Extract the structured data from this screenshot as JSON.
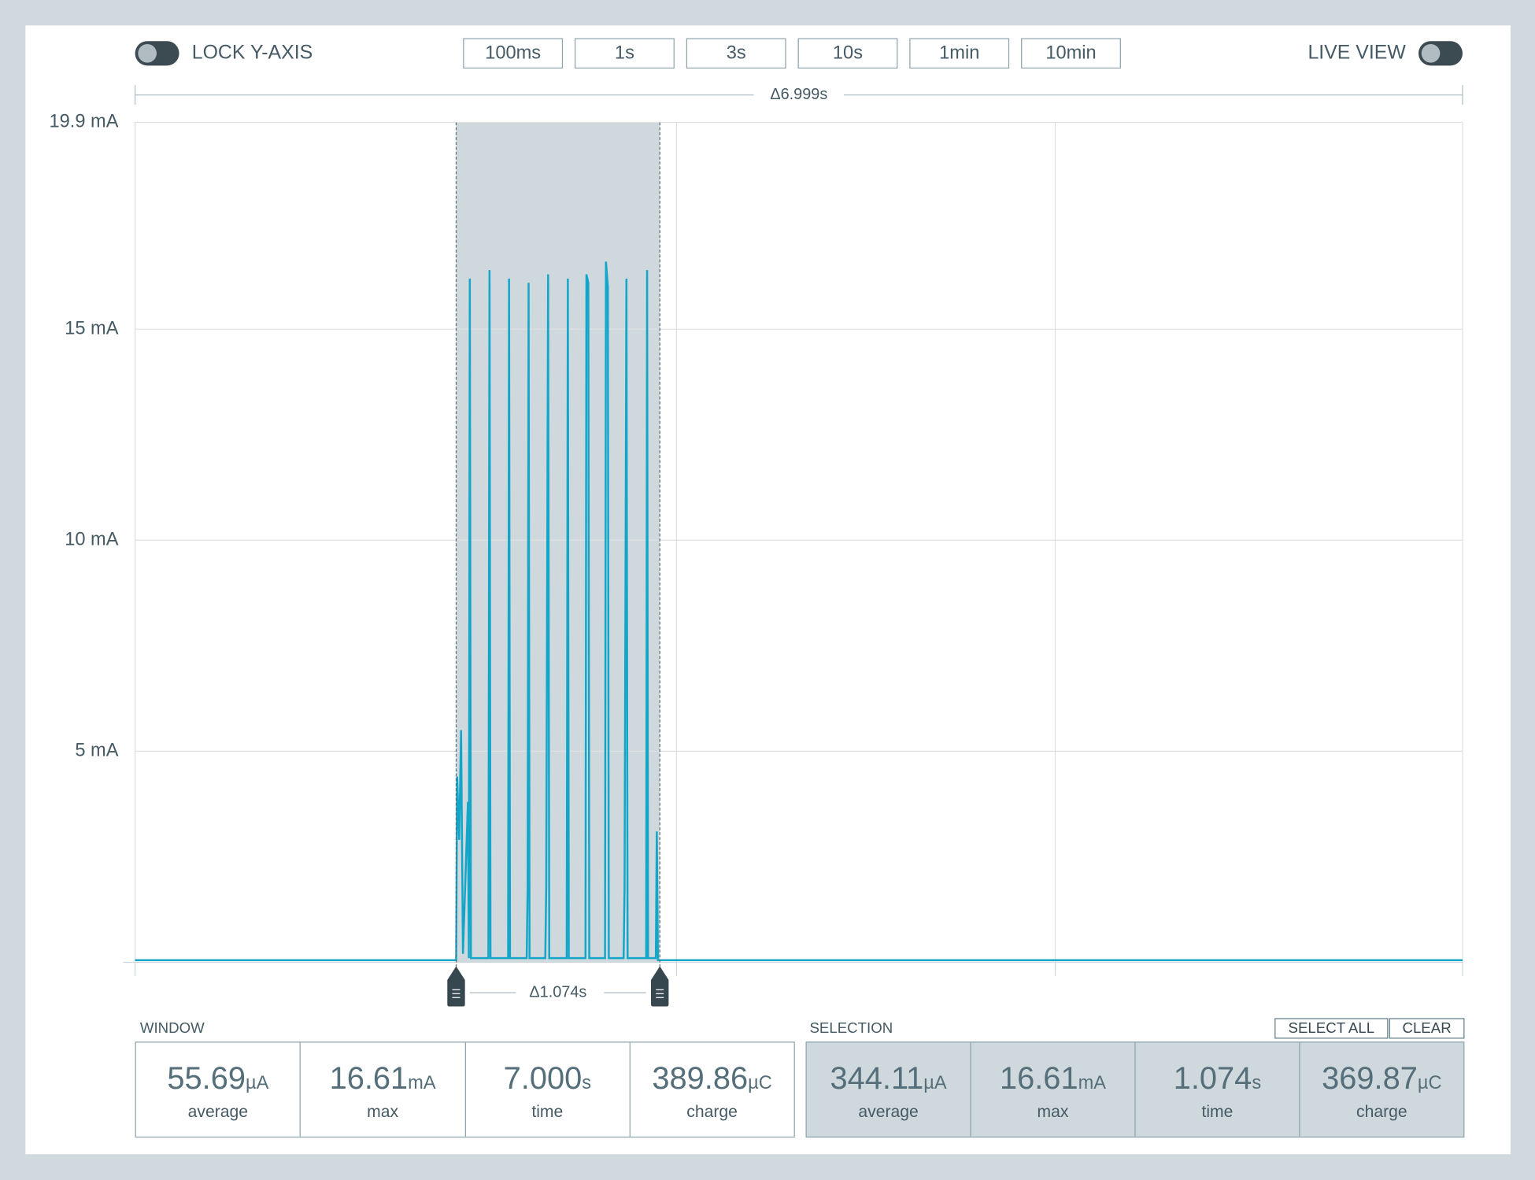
{
  "toolbar": {
    "lock_y_axis": "LOCK Y-AXIS",
    "time_buttons": [
      "100ms",
      "1s",
      "3s",
      "10s",
      "1min",
      "10min"
    ],
    "live_view": "LIVE VIEW"
  },
  "window_delta": "Δ6.999s",
  "selection_delta": "Δ1.074s",
  "chart_data": {
    "type": "line",
    "color": "#14a6c9",
    "selection_color": "#cfd8dc",
    "xlim": [
      0,
      7
    ],
    "xticks": [
      0,
      2.855,
      4.852,
      7
    ],
    "ylim": [
      0,
      19.9
    ],
    "yticks": [
      {
        "value": 5,
        "label": "5 mA"
      },
      {
        "value": 10,
        "label": "10 mA"
      },
      {
        "value": 15,
        "label": "15 mA"
      },
      {
        "value": 19.9,
        "label": "19.9 mA"
      }
    ],
    "grid": true,
    "selection": [
      1.693,
      2.767
    ],
    "x": [
      0,
      1.693,
      1.698,
      1.709,
      1.719,
      1.729,
      1.755,
      1.76,
      1.765,
      1.771,
      1.863,
      1.869,
      1.874,
      1.967,
      1.972,
      1.977,
      2.065,
      2.07,
      2.075,
      2.08,
      2.163,
      2.168,
      2.178,
      2.184,
      2.276,
      2.282,
      2.287,
      2.375,
      2.38,
      2.39,
      2.395,
      2.478,
      2.483,
      2.493,
      2.498,
      2.576,
      2.581,
      2.591,
      2.597,
      2.695,
      2.7,
      2.705,
      2.746,
      2.751,
      2.757,
      7
    ],
    "values": [
      0.05,
      0.05,
      4.4,
      2.9,
      5.5,
      0.2,
      3.8,
      0.1,
      16.2,
      0.1,
      0.1,
      16.4,
      0.1,
      0.1,
      16.2,
      0.1,
      0.1,
      1.8,
      16.1,
      0.1,
      0.1,
      1.8,
      16.3,
      0.1,
      0.1,
      16.2,
      0.1,
      0.1,
      16.3,
      16.1,
      0.1,
      0.1,
      16.6,
      16.0,
      0.1,
      0.1,
      1.8,
      16.2,
      0.1,
      0.1,
      16.4,
      0.1,
      0.1,
      3.1,
      0.05,
      0.05
    ]
  },
  "window": {
    "label": "WINDOW",
    "stats": [
      {
        "value": "55.69",
        "unit": "µA",
        "label": "average"
      },
      {
        "value": "16.61",
        "unit": "mA",
        "label": "max"
      },
      {
        "value": "7.000",
        "unit": "s",
        "label": "time"
      },
      {
        "value": "389.86",
        "unit": "µC",
        "label": "charge"
      }
    ]
  },
  "selection": {
    "label": "SELECTION",
    "buttons": [
      "SELECT ALL",
      "CLEAR"
    ],
    "stats": [
      {
        "value": "344.11",
        "unit": "µA",
        "label": "average"
      },
      {
        "value": "16.61",
        "unit": "mA",
        "label": "max"
      },
      {
        "value": "1.074",
        "unit": "s",
        "label": "time"
      },
      {
        "value": "369.87",
        "unit": "µC",
        "label": "charge"
      }
    ]
  }
}
